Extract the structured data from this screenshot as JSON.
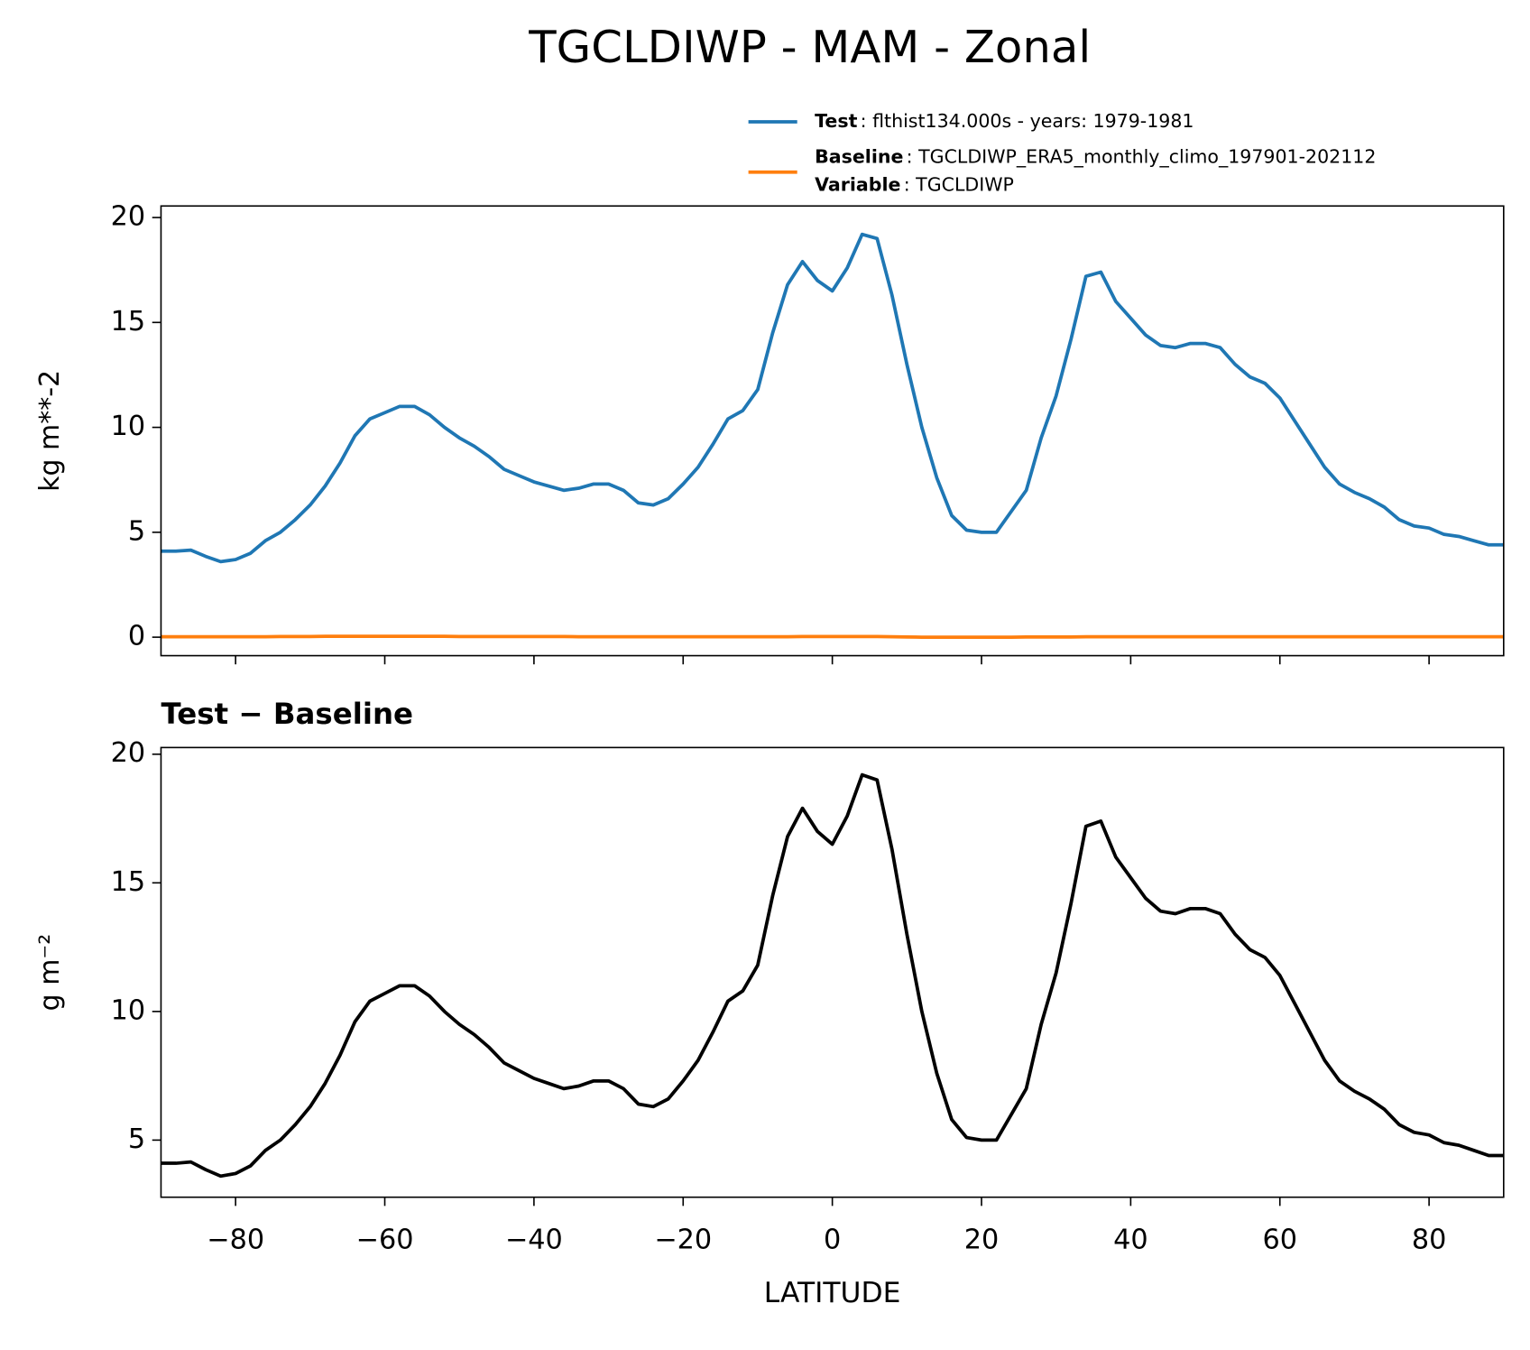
{
  "chart_data": [
    {
      "type": "line",
      "title": "TGCLDIWP - MAM - Zonal",
      "ylabel": "kg m**-2",
      "x": [
        -90,
        -88,
        -86,
        -84,
        -82,
        -80,
        -78,
        -76,
        -74,
        -72,
        -70,
        -68,
        -66,
        -64,
        -62,
        -60,
        -58,
        -56,
        -54,
        -52,
        -50,
        -48,
        -46,
        -44,
        -42,
        -40,
        -38,
        -36,
        -34,
        -32,
        -30,
        -28,
        -26,
        -24,
        -22,
        -20,
        -18,
        -16,
        -14,
        -12,
        -10,
        -8,
        -6,
        -4,
        -2,
        0,
        2,
        4,
        6,
        8,
        10,
        12,
        14,
        16,
        18,
        20,
        22,
        24,
        26,
        28,
        30,
        32,
        34,
        36,
        38,
        40,
        42,
        44,
        46,
        48,
        50,
        52,
        54,
        56,
        58,
        60,
        62,
        64,
        66,
        68,
        70,
        72,
        74,
        76,
        78,
        80,
        82,
        84,
        86,
        88,
        90
      ],
      "series": [
        {
          "name": "Test",
          "detail": ": flthist134.000s - years: 1979-1981",
          "color": "#1f77b4",
          "values": [
            4.1,
            4.1,
            4.15,
            3.85,
            3.6,
            3.7,
            4.0,
            4.6,
            5.0,
            5.6,
            6.3,
            7.2,
            8.3,
            9.6,
            10.4,
            10.7,
            11.0,
            11.0,
            10.6,
            10.0,
            9.5,
            9.1,
            8.6,
            8.0,
            7.7,
            7.4,
            7.2,
            7.0,
            7.1,
            7.3,
            7.3,
            7.0,
            6.4,
            6.3,
            6.6,
            7.3,
            8.1,
            9.2,
            10.4,
            10.8,
            11.8,
            14.5,
            16.8,
            17.9,
            17.0,
            16.5,
            17.6,
            19.2,
            19.0,
            16.3,
            13.0,
            10.0,
            7.6,
            5.8,
            5.1,
            5.0,
            5.0,
            6.0,
            7.0,
            9.5,
            11.5,
            14.2,
            17.2,
            17.4,
            16.0,
            15.2,
            14.4,
            13.9,
            13.8,
            14.0,
            14.0,
            13.8,
            13.0,
            12.4,
            12.1,
            11.4,
            10.3,
            9.2,
            8.1,
            7.3,
            6.9,
            6.6,
            6.2,
            5.6,
            5.3,
            5.2,
            4.9,
            4.8,
            4.6,
            4.4,
            4.4
          ]
        },
        {
          "name": "Baseline",
          "detail": ": TGCLDIWP_ERA5_monthly_climo_197901-202112",
          "color": "#ff7f0e",
          "values": [
            0.02,
            0.02,
            0.02,
            0.02,
            0.02,
            0.02,
            0.02,
            0.02,
            0.03,
            0.03,
            0.03,
            0.04,
            0.04,
            0.04,
            0.04,
            0.04,
            0.04,
            0.04,
            0.04,
            0.04,
            0.03,
            0.03,
            0.03,
            0.03,
            0.03,
            0.03,
            0.03,
            0.03,
            0.02,
            0.02,
            0.02,
            0.02,
            0.02,
            0.02,
            0.02,
            0.02,
            0.02,
            0.02,
            0.02,
            0.02,
            0.02,
            0.02,
            0.02,
            0.03,
            0.03,
            0.03,
            0.03,
            0.03,
            0.03,
            0.02,
            0.01,
            0.0,
            0.0,
            0.0,
            0.0,
            0.0,
            0.0,
            0.0,
            0.01,
            0.01,
            0.01,
            0.01,
            0.02,
            0.02,
            0.02,
            0.02,
            0.02,
            0.02,
            0.02,
            0.02,
            0.02,
            0.02,
            0.02,
            0.02,
            0.02,
            0.02,
            0.02,
            0.02,
            0.02,
            0.02,
            0.02,
            0.02,
            0.02,
            0.02,
            0.02,
            0.02,
            0.02,
            0.02,
            0.02,
            0.02,
            0.02
          ]
        }
      ],
      "legend_note": {
        "name": "Variable",
        "detail": ": TGCLDIWP"
      },
      "xlim": [
        -90,
        90
      ],
      "xticks": [
        -80,
        -60,
        -40,
        -20,
        0,
        20,
        40,
        60,
        80
      ],
      "ylim": [
        -0.88,
        20.55
      ],
      "yticks": [
        0,
        5,
        10,
        15,
        20
      ]
    },
    {
      "type": "line",
      "title": "Test − Baseline",
      "ylabel": "g m⁻²",
      "xlabel": "LATITUDE",
      "x": [
        -90,
        -88,
        -86,
        -84,
        -82,
        -80,
        -78,
        -76,
        -74,
        -72,
        -70,
        -68,
        -66,
        -64,
        -62,
        -60,
        -58,
        -56,
        -54,
        -52,
        -50,
        -48,
        -46,
        -44,
        -42,
        -40,
        -38,
        -36,
        -34,
        -32,
        -30,
        -28,
        -26,
        -24,
        -22,
        -20,
        -18,
        -16,
        -14,
        -12,
        -10,
        -8,
        -6,
        -4,
        -2,
        0,
        2,
        4,
        6,
        8,
        10,
        12,
        14,
        16,
        18,
        20,
        22,
        24,
        26,
        28,
        30,
        32,
        34,
        36,
        38,
        40,
        42,
        44,
        46,
        48,
        50,
        52,
        54,
        56,
        58,
        60,
        62,
        64,
        66,
        68,
        70,
        72,
        74,
        76,
        78,
        80,
        82,
        84,
        86,
        88,
        90
      ],
      "series": [
        {
          "color": "#000000",
          "values": [
            4.1,
            4.1,
            4.15,
            3.85,
            3.6,
            3.7,
            4.0,
            4.6,
            5.0,
            5.6,
            6.3,
            7.2,
            8.3,
            9.6,
            10.4,
            10.7,
            11.0,
            11.0,
            10.6,
            10.0,
            9.5,
            9.1,
            8.6,
            8.0,
            7.7,
            7.4,
            7.2,
            7.0,
            7.1,
            7.3,
            7.3,
            7.0,
            6.4,
            6.3,
            6.6,
            7.3,
            8.1,
            9.2,
            10.4,
            10.8,
            11.8,
            14.5,
            16.8,
            17.9,
            17.0,
            16.5,
            17.6,
            19.2,
            19.0,
            16.3,
            13.0,
            10.0,
            7.6,
            5.8,
            5.1,
            5.0,
            5.0,
            6.0,
            7.0,
            9.5,
            11.5,
            14.2,
            17.2,
            17.4,
            16.0,
            15.2,
            14.4,
            13.9,
            13.8,
            14.0,
            14.0,
            13.8,
            13.0,
            12.4,
            12.1,
            11.4,
            10.3,
            9.2,
            8.1,
            7.3,
            6.9,
            6.6,
            6.2,
            5.6,
            5.3,
            5.2,
            4.9,
            4.8,
            4.6,
            4.4,
            4.4
          ]
        }
      ],
      "xlim": [
        -90,
        90
      ],
      "xticks": [
        {
          "value": -80,
          "label": "−80"
        },
        {
          "value": -60,
          "label": "−60"
        },
        {
          "value": -40,
          "label": "−40"
        },
        {
          "value": -20,
          "label": "−20"
        },
        0,
        20,
        40,
        60,
        80
      ],
      "ylim": [
        2.78,
        20.26
      ],
      "yticks": [
        5,
        10,
        15,
        20
      ]
    }
  ]
}
